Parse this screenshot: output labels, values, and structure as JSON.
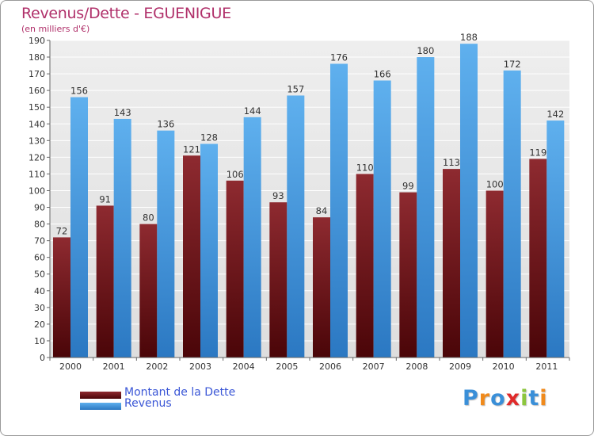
{
  "chart_data": {
    "type": "bar",
    "title": "Revenus/Dette - EGUENIGUE",
    "subtitle": "(en milliers d'€)",
    "categories": [
      "2000",
      "2001",
      "2002",
      "2003",
      "2004",
      "2005",
      "2006",
      "2007",
      "2008",
      "2009",
      "2010",
      "2011"
    ],
    "series": [
      {
        "name": "Montant de la Dette",
        "values": [
          72,
          91,
          80,
          121,
          106,
          93,
          84,
          110,
          99,
          113,
          100,
          119
        ],
        "color": "#7a1c22"
      },
      {
        "name": "Revenus",
        "values": [
          156,
          143,
          136,
          128,
          144,
          157,
          176,
          166,
          180,
          188,
          172,
          142
        ],
        "color": "#4ea3e6"
      }
    ],
    "ylim": [
      0,
      190
    ],
    "ytick_step": 10,
    "grid": true,
    "legend_position": "bottom-left",
    "data_labels": true
  },
  "logo": {
    "text": "Proxiti",
    "letters": [
      "P",
      "r",
      "o",
      "x",
      "i",
      "t",
      "i"
    ],
    "colors": [
      "#3a8fd8",
      "#f08a1c",
      "#3a8fd8",
      "#e02a2a",
      "#8cc63e",
      "#3a8fd8",
      "#f08a1c"
    ]
  }
}
